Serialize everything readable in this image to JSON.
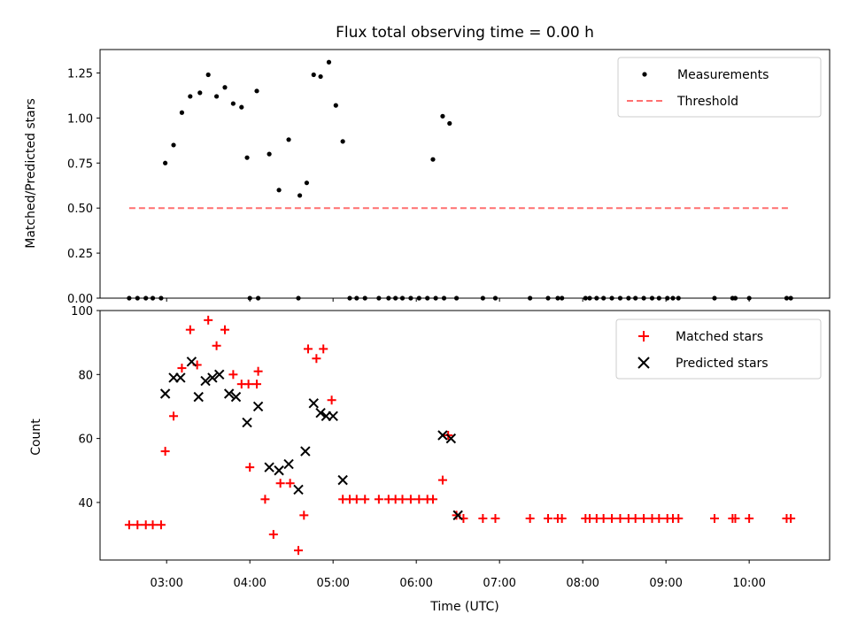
{
  "chart_data": [
    {
      "type": "scatter",
      "title": "Flux total observing time = 0.00 h",
      "ylabel": "Matched/Predicted stars",
      "xlabel": "",
      "xlim": [
        "02:12",
        "10:58"
      ],
      "ylim": [
        0,
        1.38
      ],
      "yticks": [
        0.0,
        0.25,
        0.5,
        0.75,
        1.0,
        1.25
      ],
      "ytick_labels": [
        "0.00",
        "0.25",
        "0.50",
        "0.75",
        "1.00",
        "1.25"
      ],
      "legend_position": "top-right",
      "series": [
        {
          "name": "Measurements",
          "style": "dot",
          "color": "#000000",
          "points": [
            [
              "02:33",
              0
            ],
            [
              "02:39",
              0
            ],
            [
              "02:45",
              0
            ],
            [
              "02:50",
              0
            ],
            [
              "02:56",
              0
            ],
            [
              "02:59",
              0.75
            ],
            [
              "03:05",
              0.85
            ],
            [
              "03:11",
              1.03
            ],
            [
              "03:17",
              1.12
            ],
            [
              "03:24",
              1.14
            ],
            [
              "03:30",
              1.24
            ],
            [
              "03:36",
              1.12
            ],
            [
              "03:42",
              1.17
            ],
            [
              "03:48",
              1.08
            ],
            [
              "03:54",
              1.06
            ],
            [
              "04:00",
              0
            ],
            [
              "04:06",
              0
            ],
            [
              "03:58",
              0.78
            ],
            [
              "04:05",
              1.15
            ],
            [
              "04:14",
              0.8
            ],
            [
              "04:21",
              0.6
            ],
            [
              "04:28",
              0.88
            ],
            [
              "04:35",
              0
            ],
            [
              "04:36",
              0.57
            ],
            [
              "04:41",
              0.64
            ],
            [
              "04:46",
              1.24
            ],
            [
              "04:51",
              1.23
            ],
            [
              "04:57",
              1.31
            ],
            [
              "05:02",
              1.07
            ],
            [
              "05:07",
              0.87
            ],
            [
              "05:12",
              0
            ],
            [
              "05:17",
              0
            ],
            [
              "05:23",
              0
            ],
            [
              "05:33",
              0
            ],
            [
              "05:40",
              0
            ],
            [
              "05:45",
              0
            ],
            [
              "05:50",
              0
            ],
            [
              "05:56",
              0
            ],
            [
              "06:02",
              0
            ],
            [
              "06:08",
              0
            ],
            [
              "06:14",
              0
            ],
            [
              "06:20",
              0
            ],
            [
              "06:12",
              0.77
            ],
            [
              "06:19",
              1.01
            ],
            [
              "06:24",
              0.97
            ],
            [
              "06:29",
              0
            ],
            [
              "06:48",
              0
            ],
            [
              "06:57",
              0
            ],
            [
              "07:22",
              0
            ],
            [
              "07:35",
              0
            ],
            [
              "07:42",
              0
            ],
            [
              "07:45",
              0
            ],
            [
              "08:02",
              0
            ],
            [
              "08:05",
              0
            ],
            [
              "08:10",
              0
            ],
            [
              "08:15",
              0
            ],
            [
              "08:21",
              0
            ],
            [
              "08:27",
              0
            ],
            [
              "08:33",
              0
            ],
            [
              "08:38",
              0
            ],
            [
              "08:44",
              0
            ],
            [
              "08:50",
              0
            ],
            [
              "08:55",
              0
            ],
            [
              "09:01",
              0
            ],
            [
              "09:05",
              0
            ],
            [
              "09:09",
              0
            ],
            [
              "09:35",
              0
            ],
            [
              "09:48",
              0
            ],
            [
              "09:50",
              0
            ],
            [
              "10:00",
              0
            ],
            [
              "10:27",
              0
            ],
            [
              "10:30",
              0
            ]
          ]
        },
        {
          "name": "Threshold",
          "style": "dashed",
          "color": "#ff7070",
          "points": [
            [
              "02:33",
              0.5
            ],
            [
              "10:30",
              0.5
            ]
          ]
        }
      ]
    },
    {
      "type": "scatter",
      "title": "",
      "ylabel": "Count",
      "xlabel": "Time (UTC)",
      "xlim": [
        "02:12",
        "10:58"
      ],
      "ylim": [
        22,
        100
      ],
      "yticks": [
        40,
        60,
        80,
        100
      ],
      "xticks": [
        "03:00",
        "04:00",
        "05:00",
        "06:00",
        "07:00",
        "08:00",
        "09:00",
        "10:00"
      ],
      "legend_position": "top-right",
      "series": [
        {
          "name": "Matched stars",
          "style": "plus",
          "color": "#ff0000",
          "points": [
            [
              "02:33",
              33
            ],
            [
              "02:39",
              33
            ],
            [
              "02:45",
              33
            ],
            [
              "02:50",
              33
            ],
            [
              "02:56",
              33
            ],
            [
              "02:59",
              56
            ],
            [
              "03:05",
              67
            ],
            [
              "03:11",
              82
            ],
            [
              "03:17",
              94
            ],
            [
              "03:22",
              83
            ],
            [
              "03:30",
              97
            ],
            [
              "03:36",
              89
            ],
            [
              "03:42",
              94
            ],
            [
              "03:48",
              80
            ],
            [
              "03:54",
              77
            ],
            [
              "03:59",
              77
            ],
            [
              "04:05",
              77
            ],
            [
              "04:00",
              51
            ],
            [
              "04:06",
              81
            ],
            [
              "04:11",
              41
            ],
            [
              "04:17",
              30
            ],
            [
              "04:22",
              46
            ],
            [
              "04:29",
              46
            ],
            [
              "04:35",
              25
            ],
            [
              "04:39",
              36
            ],
            [
              "04:42",
              88
            ],
            [
              "04:48",
              85
            ],
            [
              "04:53",
              88
            ],
            [
              "04:59",
              72
            ],
            [
              "05:07",
              41
            ],
            [
              "05:12",
              41
            ],
            [
              "05:17",
              41
            ],
            [
              "05:23",
              41
            ],
            [
              "05:33",
              41
            ],
            [
              "05:40",
              41
            ],
            [
              "05:45",
              41
            ],
            [
              "05:50",
              41
            ],
            [
              "05:56",
              41
            ],
            [
              "06:02",
              41
            ],
            [
              "06:08",
              41
            ],
            [
              "06:12",
              41
            ],
            [
              "06:19",
              47
            ],
            [
              "06:23",
              61
            ],
            [
              "06:29",
              36
            ],
            [
              "06:34",
              35
            ],
            [
              "06:48",
              35
            ],
            [
              "06:57",
              35
            ],
            [
              "07:22",
              35
            ],
            [
              "07:35",
              35
            ],
            [
              "07:42",
              35
            ],
            [
              "07:45",
              35
            ],
            [
              "08:02",
              35
            ],
            [
              "08:05",
              35
            ],
            [
              "08:10",
              35
            ],
            [
              "08:15",
              35
            ],
            [
              "08:21",
              35
            ],
            [
              "08:27",
              35
            ],
            [
              "08:33",
              35
            ],
            [
              "08:38",
              35
            ],
            [
              "08:44",
              35
            ],
            [
              "08:50",
              35
            ],
            [
              "08:55",
              35
            ],
            [
              "09:01",
              35
            ],
            [
              "09:05",
              35
            ],
            [
              "09:09",
              35
            ],
            [
              "09:35",
              35
            ],
            [
              "09:48",
              35
            ],
            [
              "09:50",
              35
            ],
            [
              "10:00",
              35
            ],
            [
              "10:27",
              35
            ],
            [
              "10:30",
              35
            ]
          ]
        },
        {
          "name": "Predicted stars",
          "style": "x",
          "color": "#000000",
          "points": [
            [
              "02:59",
              74
            ],
            [
              "03:05",
              79
            ],
            [
              "03:10",
              79
            ],
            [
              "03:18",
              84
            ],
            [
              "03:23",
              73
            ],
            [
              "03:28",
              78
            ],
            [
              "03:33",
              79
            ],
            [
              "03:38",
              80
            ],
            [
              "03:45",
              74
            ],
            [
              "03:50",
              73
            ],
            [
              "04:06",
              70
            ],
            [
              "03:58",
              65
            ],
            [
              "04:14",
              51
            ],
            [
              "04:21",
              50
            ],
            [
              "04:28",
              52
            ],
            [
              "04:35",
              44
            ],
            [
              "04:40",
              56
            ],
            [
              "04:46",
              71
            ],
            [
              "04:51",
              68
            ],
            [
              "04:55",
              67
            ],
            [
              "05:00",
              67
            ],
            [
              "05:07",
              47
            ],
            [
              "06:19",
              61
            ],
            [
              "06:25",
              60
            ],
            [
              "06:30",
              36
            ]
          ]
        }
      ]
    }
  ]
}
